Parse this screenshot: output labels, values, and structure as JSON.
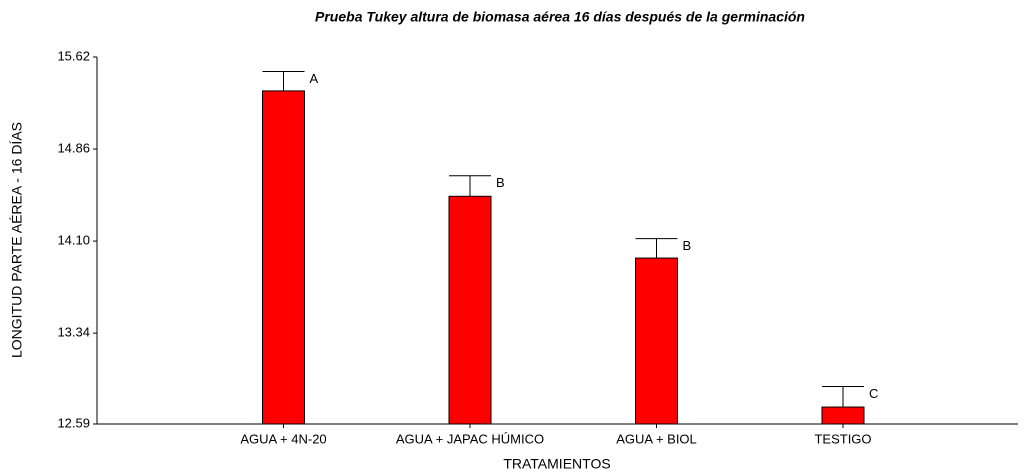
{
  "chart_data": {
    "type": "bar",
    "title": "Prueba Tukey altura de biomasa aérea 16 días después de la germinación",
    "x_label": "TRATAMIENTOS",
    "y_label": "LONGITUD PARTE AÉREA - 16 DÍAS",
    "categories": [
      "AGUA + 4N-20",
      "AGUA + JAPAC HÚMICO",
      "AGUA + BIOL",
      "TESTIGO"
    ],
    "values": [
      15.34,
      14.47,
      13.96,
      12.73
    ],
    "errors": [
      0.16,
      0.17,
      0.16,
      0.17
    ],
    "annotations": [
      "A",
      "B",
      "B",
      "C"
    ],
    "color": "#ff0000",
    "ylim": [
      12.59,
      15.62
    ],
    "yticks": [
      12.59,
      13.34,
      {
        "value": 14.1,
        "label": "14.10"
      },
      14.86,
      15.62
    ],
    "grid": false
  }
}
